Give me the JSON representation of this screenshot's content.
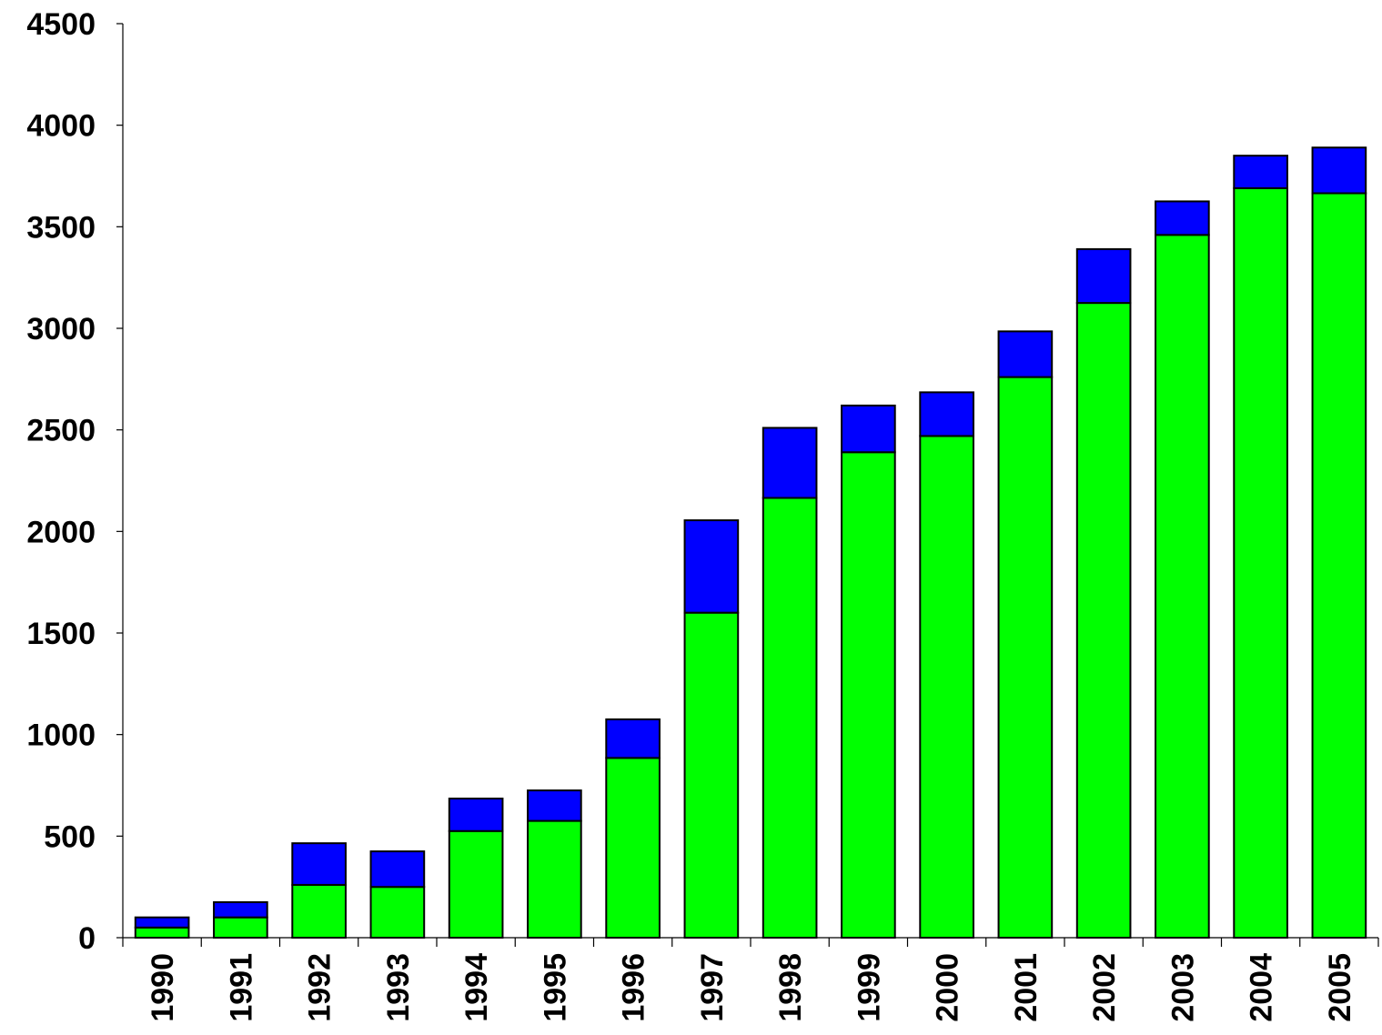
{
  "chart_data": {
    "type": "bar",
    "stacked": true,
    "title": "",
    "xlabel": "",
    "ylabel": "",
    "categories": [
      "1990",
      "1991",
      "1992",
      "1993",
      "1994",
      "1995",
      "1996",
      "1997",
      "1998",
      "1999",
      "2000",
      "2001",
      "2002",
      "2003",
      "2004",
      "2005"
    ],
    "series": [
      {
        "color": "#00ff00",
        "values": [
          50,
          100,
          260,
          250,
          525,
          575,
          885,
          1600,
          2165,
          2390,
          2470,
          2760,
          3125,
          3460,
          3690,
          3665
        ]
      },
      {
        "color": "#0000ff",
        "values": [
          50,
          75,
          205,
          175,
          160,
          150,
          190,
          455,
          345,
          230,
          215,
          225,
          265,
          165,
          160,
          225
        ]
      }
    ],
    "ylim": [
      0,
      4500
    ],
    "yticks": [
      0,
      500,
      1000,
      1500,
      2000,
      2500,
      3000,
      3500,
      4000,
      4500
    ],
    "grid": false,
    "legend": "none"
  }
}
